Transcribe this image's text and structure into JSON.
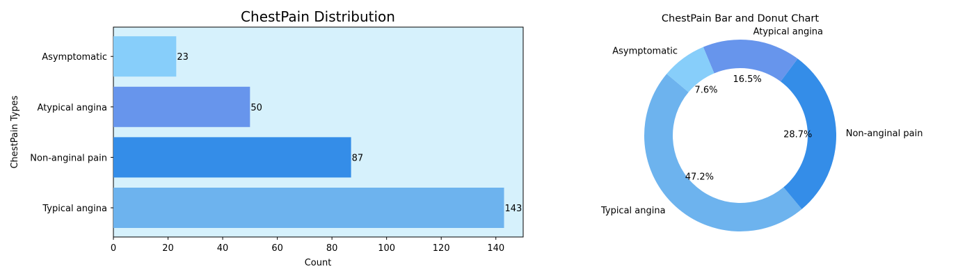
{
  "chart_data": [
    {
      "type": "bar",
      "orientation": "horizontal",
      "title": "ChestPain Distribution",
      "xlabel": "Count",
      "ylabel": "ChestPain Types",
      "categories": [
        "Typical angina",
        "Non-anginal pain",
        "Atypical angina",
        "Asymptomatic"
      ],
      "values": [
        143,
        87,
        50,
        23
      ],
      "data_labels": [
        "143",
        "87",
        "50",
        "23"
      ],
      "xlim": [
        0,
        150
      ],
      "xticks": [
        0,
        20,
        40,
        60,
        80,
        100,
        120,
        140
      ],
      "colors": [
        "#6DB3EE",
        "#348DE8",
        "#6795EC",
        "#87CEFA"
      ],
      "background": "#D6F1FC",
      "grid": false
    },
    {
      "type": "pie",
      "style": "donut",
      "title": "ChestPain Bar and Donut Chart",
      "labels": [
        "Typical angina",
        "Non-anginal pain",
        "Atypical angina",
        "Asymptomatic"
      ],
      "values": [
        143,
        87,
        50,
        23
      ],
      "percent_labels": [
        "47.2%",
        "28.7%",
        "16.5%",
        "7.6%"
      ],
      "colors": [
        "#6DB3EE",
        "#348DE8",
        "#6795EC",
        "#87CEFA"
      ]
    }
  ]
}
